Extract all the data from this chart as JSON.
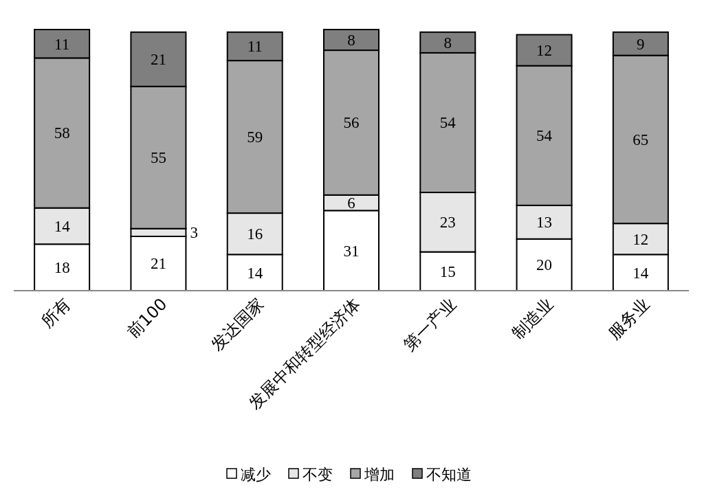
{
  "chart_data": {
    "type": "bar",
    "stacked": true,
    "data_labels": true,
    "legend": "bottom",
    "categories": [
      "所有",
      "前100",
      "发达国家",
      "发展中和转型经济体",
      "第一产业",
      "制造业",
      "服务业"
    ],
    "series": [
      {
        "name": "减少",
        "color": "#ffffff",
        "values": [
          18,
          21,
          14,
          31,
          15,
          20,
          14
        ]
      },
      {
        "name": "不变",
        "color": "#e6e6e6",
        "values": [
          14,
          3,
          16,
          6,
          23,
          13,
          12
        ]
      },
      {
        "name": "增加",
        "color": "#a6a6a6",
        "values": [
          58,
          55,
          59,
          56,
          54,
          54,
          65
        ]
      },
      {
        "name": "不知道",
        "color": "#7f7f7f",
        "values": [
          11,
          21,
          11,
          8,
          8,
          12,
          9
        ]
      }
    ]
  }
}
